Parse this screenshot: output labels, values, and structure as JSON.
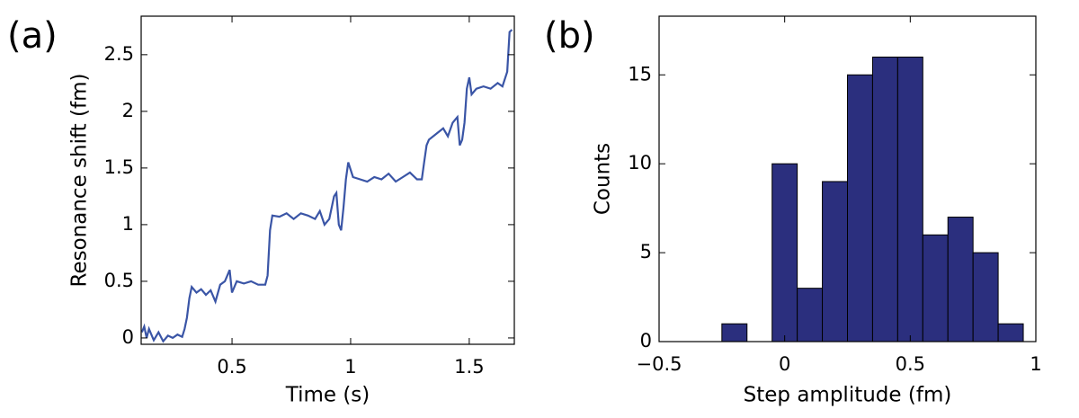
{
  "chart_data": [
    {
      "type": "line",
      "panel_label": "(a)",
      "xlabel": "Time (s)",
      "ylabel": "Resonance shift (fm)",
      "xlim": [
        0.117,
        1.69
      ],
      "ylim": [
        -0.056,
        2.84
      ],
      "xticks": [
        0.5,
        1,
        1.5
      ],
      "yticks": [
        0,
        0.5,
        1,
        1.5,
        2,
        2.5
      ],
      "series": [
        {
          "name": "Resonance shift",
          "color": "#3a55a6",
          "x": [
            0.12,
            0.13,
            0.14,
            0.15,
            0.17,
            0.19,
            0.21,
            0.23,
            0.25,
            0.27,
            0.29,
            0.3,
            0.31,
            0.32,
            0.33,
            0.35,
            0.37,
            0.39,
            0.41,
            0.43,
            0.45,
            0.47,
            0.48,
            0.49,
            0.5,
            0.52,
            0.55,
            0.58,
            0.61,
            0.64,
            0.65,
            0.66,
            0.67,
            0.7,
            0.73,
            0.76,
            0.79,
            0.82,
            0.85,
            0.87,
            0.89,
            0.91,
            0.93,
            0.94,
            0.95,
            0.96,
            0.97,
            0.98,
            0.99,
            1.01,
            1.04,
            1.07,
            1.1,
            1.13,
            1.16,
            1.19,
            1.22,
            1.25,
            1.28,
            1.3,
            1.31,
            1.32,
            1.33,
            1.36,
            1.39,
            1.41,
            1.43,
            1.45,
            1.46,
            1.47,
            1.48,
            1.49,
            1.5,
            1.51,
            1.53,
            1.56,
            1.59,
            1.62,
            1.64,
            1.66,
            1.67,
            1.68
          ],
          "values": [
            0.05,
            0.1,
            0.0,
            0.08,
            -0.02,
            0.05,
            -0.03,
            0.02,
            0.0,
            0.03,
            0.01,
            0.08,
            0.18,
            0.35,
            0.45,
            0.4,
            0.43,
            0.38,
            0.42,
            0.32,
            0.47,
            0.5,
            0.55,
            0.6,
            0.4,
            0.5,
            0.48,
            0.5,
            0.47,
            0.47,
            0.55,
            0.95,
            1.08,
            1.07,
            1.1,
            1.05,
            1.1,
            1.08,
            1.05,
            1.12,
            1.0,
            1.05,
            1.25,
            1.28,
            1.0,
            0.95,
            1.15,
            1.4,
            1.55,
            1.42,
            1.4,
            1.38,
            1.42,
            1.4,
            1.45,
            1.38,
            1.42,
            1.46,
            1.4,
            1.4,
            1.55,
            1.7,
            1.75,
            1.8,
            1.85,
            1.78,
            1.9,
            1.95,
            1.7,
            1.75,
            1.9,
            2.2,
            2.3,
            2.15,
            2.2,
            2.22,
            2.2,
            2.25,
            2.22,
            2.35,
            2.7,
            2.72
          ]
        }
      ]
    },
    {
      "type": "histogram",
      "panel_label": "(b)",
      "xlabel": "Step amplitude (fm)",
      "ylabel": "Counts",
      "xlim": [
        -0.5,
        1.0
      ],
      "ylim": [
        0,
        18.3
      ],
      "xticks": [
        {
          "value": -0.5,
          "label": "−0.5"
        },
        0,
        0.5,
        1
      ],
      "yticks": [
        0,
        5,
        10,
        15
      ],
      "color": "#2b2f7e",
      "bins": [
        -0.25,
        -0.15,
        -0.05,
        0.05,
        0.15,
        0.25,
        0.35,
        0.45,
        0.55,
        0.65,
        0.75,
        0.85,
        0.95
      ],
      "values": [
        1,
        0,
        10,
        3,
        9,
        15,
        16,
        16,
        6,
        7,
        5,
        1
      ]
    }
  ]
}
